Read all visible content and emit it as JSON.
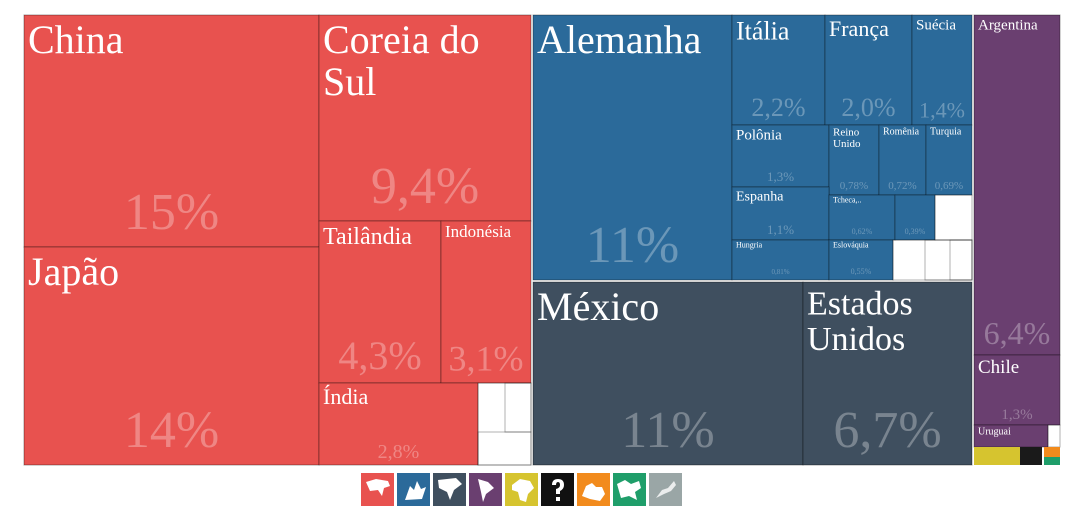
{
  "chart_data": {
    "type": "treemap",
    "categories": [
      "China",
      "Japão",
      "Coreia do Sul",
      "Tailândia",
      "Indonésia",
      "Índia",
      "Alemanha",
      "Itália",
      "França",
      "Suécia",
      "Polônia",
      "Reino Unido",
      "Romênia",
      "Turquia",
      "Espanha",
      "Tcheca,..",
      null,
      "Hungria",
      "Eslováquia",
      "México",
      "Estados Unidos",
      "Argentina",
      "Chile",
      "Uruguai"
    ],
    "values": [
      15,
      14,
      9.4,
      4.3,
      3.1,
      2.8,
      11,
      2.2,
      2.0,
      1.4,
      1.3,
      0.78,
      0.72,
      0.69,
      1.1,
      0.62,
      0.39,
      0.81,
      0.55,
      11,
      6.7,
      6.4,
      1.3,
      null
    ],
    "value_labels": [
      "15%",
      "14%",
      "9,4%",
      "4,3%",
      "3,1%",
      "2,8%",
      "11%",
      "2,2%",
      "2,0%",
      "1,4%",
      "1,3%",
      "0,78%",
      "0,72%",
      "0,69%",
      "1,1%",
      "0,62%",
      "0,39%",
      "0,81%",
      "0,55%",
      "11%",
      "6,7%",
      "6,4%",
      "1,3%",
      null
    ],
    "colors": [
      "#e8524f",
      "#e8524f",
      "#e8524f",
      "#e8524f",
      "#e8524f",
      "#e8524f",
      "#2b6a9a",
      "#2b6a9a",
      "#2b6a9a",
      "#2b6a9a",
      "#2b6a9a",
      "#2b6a9a",
      "#2b6a9a",
      "#2b6a9a",
      "#2b6a9a",
      "#2b6a9a",
      "#2b6a9a",
      "#2b6a9a",
      "#2b6a9a",
      "#3f4f5f",
      "#3f4f5f",
      "#6a3f70",
      "#6a3f70",
      "#6a3f70"
    ]
  }
}
